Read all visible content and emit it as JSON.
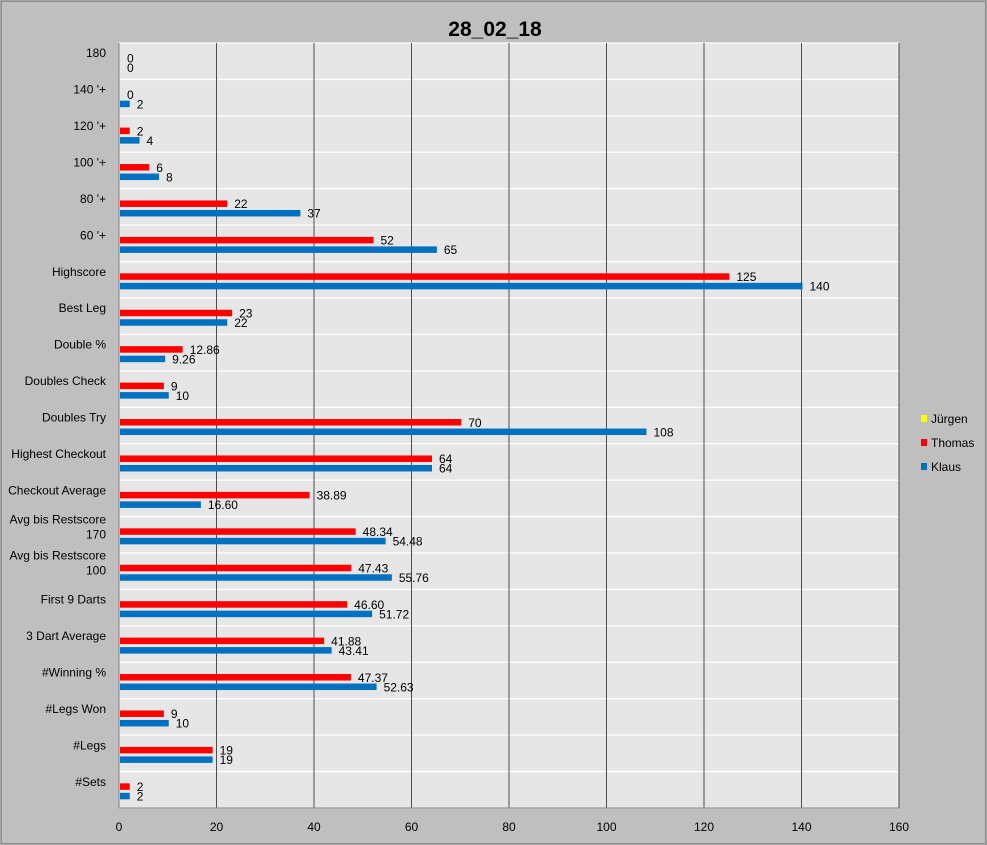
{
  "chart_data": {
    "type": "bar",
    "orientation": "horizontal",
    "title": "28_02_18",
    "categories": [
      "180",
      "140 '+",
      "120 '+",
      "100 '+",
      "80 '+",
      "60 '+",
      "Highscore",
      "Best Leg",
      "Double %",
      "Doubles Check",
      "Doubles Try",
      "Highest Checkout",
      "Checkout Average",
      [
        "Avg bis Restscore",
        "170"
      ],
      [
        "Avg bis Restscore",
        "100"
      ],
      "First 9 Darts",
      "3 Dart Average",
      "#Winning %",
      "#Legs Won",
      "#Legs",
      "#Sets"
    ],
    "series": [
      {
        "name": "Thomas",
        "color": "#ff0000",
        "values": [
          0,
          0,
          2,
          6,
          22,
          52,
          125,
          23,
          12.86,
          9,
          70,
          64,
          38.89,
          48.34,
          47.43,
          46.6,
          41.88,
          47.37,
          9,
          19,
          2
        ],
        "labels": [
          "0",
          "0",
          "2",
          "6",
          "22",
          "52",
          "125",
          "23",
          "12.86",
          "9",
          "70",
          "64",
          "38.89",
          "48.34",
          "47.43",
          "46.60",
          "41.88",
          "47.37",
          "9",
          "19",
          "2"
        ]
      },
      {
        "name": "Klaus",
        "color": "#0070c0",
        "values": [
          0,
          2,
          4,
          8,
          37,
          65,
          140,
          22,
          9.26,
          10,
          108,
          64,
          16.6,
          54.48,
          55.76,
          51.72,
          43.41,
          52.63,
          10,
          19,
          2
        ],
        "labels": [
          "0",
          "2",
          "4",
          "8",
          "37",
          "65",
          "140",
          "22",
          "9.26",
          "10",
          "108",
          "64",
          "16.60",
          "54.48",
          "55.76",
          "51.72",
          "43.41",
          "52.63",
          "10",
          "19",
          "2"
        ]
      }
    ],
    "legend": [
      {
        "name": "Jürgen",
        "color": "#ffff00"
      },
      {
        "name": "Thomas",
        "color": "#ff0000"
      },
      {
        "name": "Klaus",
        "color": "#0070c0"
      }
    ],
    "xlim": [
      0,
      160
    ],
    "xticks": [
      0,
      20,
      40,
      60,
      80,
      100,
      120,
      140,
      160
    ],
    "grid": "vertical",
    "legend_position": "right",
    "plot_background": "#e6e6e6"
  }
}
